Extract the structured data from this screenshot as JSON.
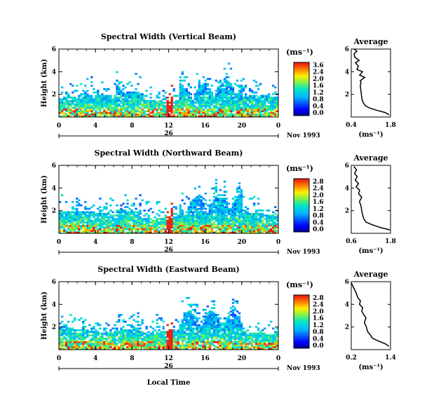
{
  "chart_data": [
    {
      "type": "heatmap",
      "title": "Spectral Width (Vertical Beam)",
      "ylabel": "Height (km)",
      "xlim": [
        0,
        24
      ],
      "ylim": [
        0,
        6
      ],
      "x_ticks": [
        "0",
        "4",
        "8",
        "12",
        "16",
        "20",
        "0"
      ],
      "y_ticks": [
        "2",
        "4",
        "6"
      ],
      "date_day": "26",
      "date_label": "Nov 1993",
      "colorbar": {
        "unit": "(ms⁻¹)",
        "ticks": [
          "3.6",
          "2.4",
          "2.0",
          "1.6",
          "1.2",
          "0.8",
          "0.4",
          "0.0"
        ],
        "range": [
          0,
          3.6
        ]
      },
      "profile": {
        "title": "Average",
        "xlabel": "(ms⁻¹)",
        "xlim": [
          0.4,
          1.8
        ],
        "x_ticks": [
          "0.4",
          "1.8"
        ],
        "y_ticks": [
          "2",
          "4",
          "6"
        ],
        "points": [
          [
            1.75,
            0.2
          ],
          [
            1.6,
            0.4
          ],
          [
            1.3,
            0.6
          ],
          [
            1.05,
            0.8
          ],
          [
            0.9,
            1.0
          ],
          [
            0.82,
            1.3
          ],
          [
            0.78,
            1.6
          ],
          [
            0.76,
            2.0
          ],
          [
            0.74,
            2.4
          ],
          [
            0.72,
            2.8
          ],
          [
            0.75,
            3.0
          ],
          [
            0.72,
            3.2
          ],
          [
            0.88,
            3.5
          ],
          [
            0.7,
            3.7
          ],
          [
            0.8,
            4.0
          ],
          [
            0.6,
            4.2
          ],
          [
            0.65,
            4.5
          ],
          [
            0.55,
            4.8
          ],
          [
            0.68,
            5.0
          ],
          [
            0.52,
            5.3
          ],
          [
            0.5,
            5.6
          ],
          [
            0.6,
            5.8
          ],
          [
            0.5,
            6.0
          ]
        ]
      }
    },
    {
      "type": "heatmap",
      "title": "Spectral Width (Northward Beam)",
      "ylabel": "Height (km)",
      "xlim": [
        0,
        24
      ],
      "ylim": [
        0,
        6
      ],
      "x_ticks": [
        "0",
        "4",
        "8",
        "12",
        "16",
        "20",
        "0"
      ],
      "y_ticks": [
        "2",
        "4",
        "6"
      ],
      "date_day": "26",
      "date_label": "Nov 1993",
      "colorbar": {
        "unit": "(ms⁻¹)",
        "ticks": [
          "2.8",
          "2.4",
          "2.0",
          "1.6",
          "1.2",
          "0.8",
          "0.4",
          "0.0"
        ],
        "range": [
          0,
          2.8
        ]
      },
      "profile": {
        "title": "Average",
        "xlabel": "(ms⁻¹)",
        "xlim": [
          0.6,
          1.8
        ],
        "x_ticks": [
          "0.6",
          "1.8"
        ],
        "y_ticks": [
          "2",
          "4",
          "6"
        ],
        "points": [
          [
            1.78,
            0.3
          ],
          [
            1.5,
            0.5
          ],
          [
            1.2,
            0.8
          ],
          [
            1.05,
            1.0
          ],
          [
            0.98,
            1.3
          ],
          [
            0.95,
            1.6
          ],
          [
            0.92,
            2.0
          ],
          [
            0.9,
            2.4
          ],
          [
            0.85,
            2.8
          ],
          [
            0.92,
            3.2
          ],
          [
            0.82,
            3.5
          ],
          [
            0.86,
            3.8
          ],
          [
            0.75,
            4.1
          ],
          [
            0.82,
            4.4
          ],
          [
            0.72,
            4.7
          ],
          [
            0.78,
            5.0
          ],
          [
            0.7,
            5.3
          ],
          [
            0.76,
            5.6
          ],
          [
            0.68,
            5.9
          ]
        ]
      }
    },
    {
      "type": "heatmap",
      "title": "Spectral Width (Eastward Beam)",
      "ylabel": "Height (km)",
      "xlabel": "Local Time",
      "xlim": [
        0,
        24
      ],
      "ylim": [
        0,
        6
      ],
      "x_ticks": [
        "0",
        "4",
        "8",
        "12",
        "16",
        "20",
        "0"
      ],
      "y_ticks": [
        "2",
        "4",
        "6"
      ],
      "date_day": "26",
      "date_label": "Nov 1993",
      "colorbar": {
        "unit": "(ms⁻¹)",
        "ticks": [
          "2.8",
          "2.4",
          "2.0",
          "1.6",
          "1.2",
          "0.8",
          "0.4",
          "0.0"
        ],
        "range": [
          0,
          2.8
        ]
      },
      "profile": {
        "title": "Average",
        "xlabel": "(ms⁻¹)",
        "xlim": [
          0.2,
          1.4
        ],
        "x_ticks": [
          "0.2",
          "1.4"
        ],
        "y_ticks": [
          "2",
          "4",
          "6"
        ],
        "points": [
          [
            1.35,
            0.3
          ],
          [
            1.25,
            0.5
          ],
          [
            1.0,
            0.8
          ],
          [
            0.85,
            1.0
          ],
          [
            0.78,
            1.3
          ],
          [
            0.7,
            1.6
          ],
          [
            0.66,
            2.0
          ],
          [
            0.6,
            2.4
          ],
          [
            0.65,
            2.8
          ],
          [
            0.58,
            3.1
          ],
          [
            0.52,
            3.4
          ],
          [
            0.55,
            3.7
          ],
          [
            0.45,
            4.0
          ],
          [
            0.48,
            4.3
          ],
          [
            0.4,
            4.6
          ],
          [
            0.35,
            5.0
          ],
          [
            0.3,
            5.3
          ],
          [
            0.25,
            5.6
          ],
          [
            0.2,
            5.9
          ]
        ]
      }
    }
  ]
}
